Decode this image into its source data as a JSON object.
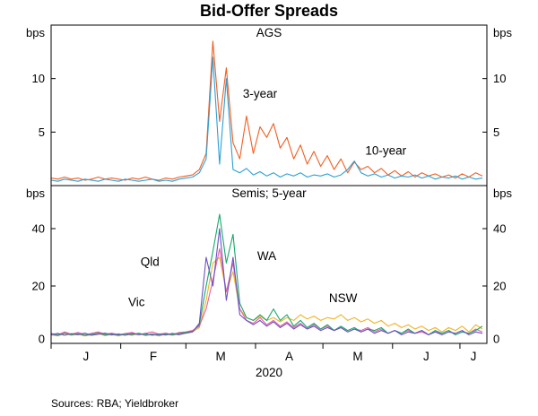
{
  "title": "Bid-Offer Spreads",
  "source_note": "Sources:  RBA; Yieldbroker",
  "axis": {
    "months": [
      "J",
      "F",
      "M",
      "A",
      "M",
      "J",
      "J"
    ],
    "year": "2020",
    "unit": "bps"
  },
  "chart_data": [
    {
      "type": "line",
      "panel": "top",
      "title": "AGS",
      "ylabel": "bps",
      "ylim": [
        0,
        15
      ],
      "yticks": [
        5,
        10
      ],
      "x_unit": "days from 1 Jan 2020",
      "x_step_days": 3,
      "annotations": [
        {
          "text": "AGS",
          "color": "#000000",
          "x_day": 97,
          "y": 13.9
        },
        {
          "text": "3-year",
          "color": "#f35e21",
          "x_day": 93,
          "y": 8.2
        },
        {
          "text": "10-year",
          "color": "#2d9fd5",
          "x_day": 149,
          "y": 2.9
        }
      ],
      "series": [
        {
          "name": "3-year",
          "color": "#f35e21",
          "values": [
            0.7,
            0.6,
            0.8,
            0.6,
            0.7,
            0.5,
            0.6,
            0.8,
            0.6,
            0.7,
            0.6,
            0.5,
            0.7,
            0.6,
            0.8,
            0.6,
            0.5,
            0.7,
            0.6,
            0.8,
            0.9,
            1.0,
            1.5,
            3.0,
            13.5,
            6.0,
            11.0,
            4.0,
            2.5,
            6.5,
            3.0,
            5.5,
            4.5,
            5.8,
            3.5,
            4.5,
            2.5,
            3.8,
            2.0,
            3.2,
            1.8,
            2.8,
            1.5,
            2.5,
            1.2,
            2.2,
            1.5,
            1.8,
            1.2,
            1.6,
            1.0,
            1.4,
            0.9,
            1.3,
            0.8,
            1.2,
            0.9,
            1.1,
            0.8,
            1.0,
            0.7,
            1.1,
            0.8,
            1.2,
            0.9
          ]
        },
        {
          "name": "10-year",
          "color": "#2d9fd5",
          "values": [
            0.5,
            0.4,
            0.6,
            0.5,
            0.4,
            0.6,
            0.5,
            0.4,
            0.6,
            0.5,
            0.4,
            0.6,
            0.5,
            0.4,
            0.5,
            0.6,
            0.4,
            0.5,
            0.4,
            0.6,
            0.7,
            0.8,
            1.2,
            2.5,
            12.0,
            2.0,
            10.0,
            1.5,
            1.2,
            1.6,
            1.0,
            1.3,
            0.9,
            1.2,
            0.8,
            1.1,
            0.9,
            1.2,
            0.8,
            1.0,
            0.9,
            1.1,
            0.8,
            1.0,
            1.5,
            2.3,
            1.2,
            0.9,
            1.1,
            0.8,
            1.0,
            0.7,
            0.9,
            0.8,
            1.0,
            0.7,
            0.9,
            0.6,
            0.8,
            0.7,
            0.9,
            0.6,
            0.8,
            0.6,
            0.7
          ]
        }
      ]
    },
    {
      "type": "line",
      "panel": "bottom",
      "title": "Semis; 5-year",
      "ylabel": "bps",
      "ylim": [
        0,
        55
      ],
      "yticks": [
        0,
        20,
        40
      ],
      "x_unit": "days from 1 Jan 2020",
      "x_step_days": 3,
      "annotations": [
        {
          "text": "Semis; 5-year",
          "color": "#000000",
          "x_day": 97,
          "y": 51
        },
        {
          "text": "Qld",
          "color": "#6d4fc4",
          "x_day": 44,
          "y": 27
        },
        {
          "text": "Vic",
          "color": "#e561a4",
          "x_day": 38,
          "y": 13
        },
        {
          "text": "WA",
          "color": "#15a96b",
          "x_day": 96,
          "y": 29
        },
        {
          "text": "NSW",
          "color": "#f0b422",
          "x_day": 130,
          "y": 14.3
        }
      ],
      "series": [
        {
          "name": "NSW",
          "color": "#f0b422",
          "values": [
            3.0,
            2.6,
            3.4,
            2.8,
            3.2,
            2.6,
            3.0,
            3.4,
            2.7,
            3.1,
            2.6,
            3.2,
            2.8,
            3.4,
            2.7,
            3.1,
            2.6,
            3.2,
            2.8,
            3.3,
            3.5,
            4.0,
            5.5,
            15.0,
            28.0,
            30.0,
            18.0,
            25.0,
            12.0,
            9.0,
            8.0,
            9.5,
            8.0,
            9.0,
            7.5,
            9.0,
            8.0,
            10.0,
            8.5,
            9.5,
            8.0,
            9.0,
            8.5,
            10.0,
            8.0,
            9.0,
            7.5,
            8.5,
            7.0,
            8.0,
            6.0,
            7.0,
            5.5,
            6.5,
            5.0,
            6.0,
            4.5,
            5.5,
            4.0,
            5.5,
            4.5,
            6.0,
            4.0,
            6.5,
            5.0
          ]
        },
        {
          "name": "Vic",
          "color": "#e561a4",
          "values": [
            3.5,
            3.0,
            4.0,
            3.2,
            3.8,
            3.0,
            3.5,
            4.0,
            3.2,
            3.6,
            3.0,
            3.4,
            3.8,
            3.0,
            3.5,
            4.0,
            3.2,
            3.6,
            3.0,
            3.8,
            4.0,
            4.5,
            6.0,
            12.0,
            22.0,
            33.0,
            18.0,
            28.0,
            12.0,
            8.0,
            7.0,
            9.0,
            6.5,
            8.0,
            6.0,
            7.5,
            5.5,
            7.0,
            5.0,
            6.5,
            5.0,
            6.0,
            4.5,
            5.5,
            4.0,
            5.0,
            4.5,
            5.5,
            4.0,
            5.0,
            3.5,
            4.5,
            3.5,
            4.5,
            3.5,
            4.0,
            3.0,
            4.0,
            3.5,
            4.5,
            3.0,
            4.0,
            3.5,
            5.0,
            4.0
          ]
        },
        {
          "name": "WA",
          "color": "#15a96b",
          "values": [
            3.2,
            2.8,
            3.6,
            3.0,
            3.4,
            2.8,
            3.2,
            3.6,
            2.9,
            3.3,
            2.8,
            3.4,
            3.0,
            3.6,
            2.9,
            3.3,
            2.8,
            3.4,
            3.0,
            3.5,
            3.8,
            4.2,
            6.5,
            20.0,
            32.0,
            45.0,
            28.0,
            38.0,
            14.0,
            9.0,
            8.0,
            10.0,
            8.0,
            12.0,
            8.0,
            10.0,
            6.0,
            8.0,
            5.5,
            7.0,
            5.0,
            6.5,
            4.5,
            6.0,
            4.5,
            5.5,
            4.0,
            5.0,
            4.5,
            5.5,
            3.5,
            4.5,
            3.5,
            5.0,
            3.5,
            4.5,
            3.0,
            4.5,
            3.5,
            4.5,
            3.0,
            4.0,
            3.5,
            4.5,
            6.0
          ]
        },
        {
          "name": "Qld",
          "color": "#6d4fc4",
          "values": [
            3.0,
            3.5,
            2.8,
            3.4,
            3.0,
            3.6,
            2.8,
            3.2,
            3.6,
            2.9,
            3.3,
            2.8,
            3.5,
            3.0,
            3.4,
            2.8,
            3.3,
            2.9,
            3.5,
            3.0,
            3.6,
            4.0,
            7.0,
            30.0,
            20.0,
            40.0,
            15.0,
            30.0,
            10.0,
            8.0,
            6.5,
            8.0,
            6.0,
            7.5,
            5.5,
            7.0,
            5.0,
            6.5,
            5.0,
            6.0,
            4.5,
            5.5,
            4.5,
            5.5,
            4.0,
            5.0,
            4.0,
            5.0,
            3.5,
            4.5,
            3.5,
            4.5,
            3.0,
            4.0,
            3.5,
            4.5,
            3.0,
            4.0,
            3.0,
            4.0,
            3.5,
            4.5,
            3.0,
            4.0,
            3.5
          ]
        }
      ]
    }
  ]
}
